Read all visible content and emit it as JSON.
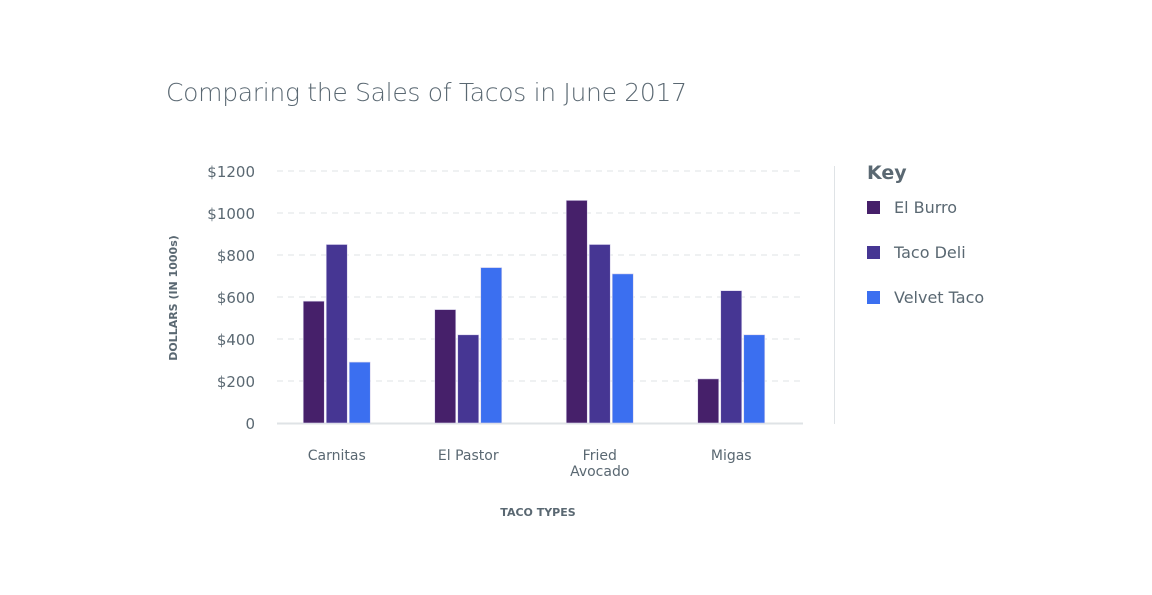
{
  "chart_data": {
    "type": "bar",
    "title": "Comparing the Sales of Tacos in June 2017",
    "xlabel": "TACO TYPES",
    "ylabel": "DOLLARS (IN 1000s)",
    "categories": [
      "Carnitas",
      "El Pastor",
      "Fried Avocado",
      "Migas"
    ],
    "category_lines": [
      [
        "Carnitas"
      ],
      [
        "El Pastor"
      ],
      [
        "Fried",
        "Avocado"
      ],
      [
        "Migas"
      ]
    ],
    "yticks": [
      0,
      200,
      400,
      600,
      800,
      1000,
      1200
    ],
    "ytick_labels": [
      "0",
      "$200",
      "$400",
      "$600",
      "$800",
      "$1000",
      "$1200"
    ],
    "ylim": [
      0,
      1200
    ],
    "grid": true,
    "legend_title": "Key",
    "legend_position": "right",
    "series": [
      {
        "name": "El Burro",
        "color": "#46206a",
        "values": [
          580,
          540,
          1060,
          210
        ]
      },
      {
        "name": "Taco Deli",
        "color": "#463693",
        "values": [
          850,
          420,
          850,
          630
        ]
      },
      {
        "name": "Velvet Taco",
        "color": "#3b6ff0",
        "values": [
          290,
          740,
          710,
          420
        ]
      }
    ]
  }
}
